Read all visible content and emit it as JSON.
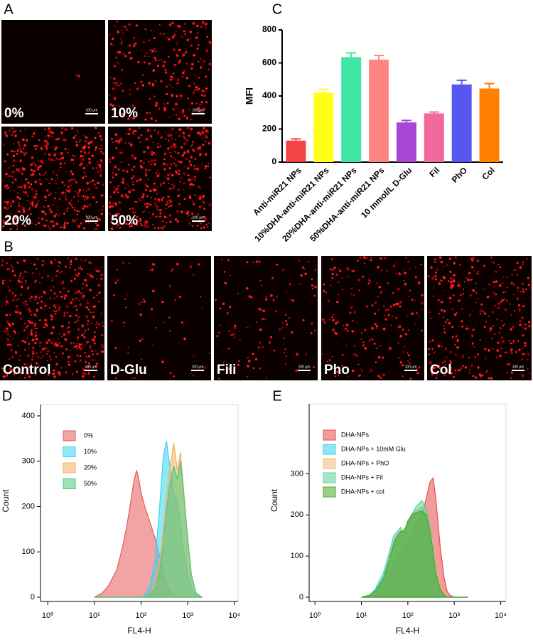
{
  "panel_labels": [
    "A",
    "B",
    "C",
    "D",
    "E"
  ],
  "images_a": [
    {
      "label": "0%",
      "scale": "100 μm"
    },
    {
      "label": "10%",
      "scale": "100 μm"
    },
    {
      "label": "20%",
      "scale": "100 μm"
    },
    {
      "label": "50%",
      "scale": "100 μm"
    }
  ],
  "images_b": [
    {
      "label": "Control",
      "scale": "100 μm"
    },
    {
      "label": "D-Glu",
      "scale": "100 μm"
    },
    {
      "label": "Fili",
      "scale": "100 μm"
    },
    {
      "label": "Pho",
      "scale": "100 μm"
    },
    {
      "label": "Col",
      "scale": "100 μm"
    }
  ],
  "chart_data": [
    {
      "type": "bar",
      "ylabel": "MFI",
      "categories": [
        "Anti-miR21 NPs",
        "10%DHA-anti-miR21 NPs",
        "20%DHA-anti-miR21 NPs",
        "50%DHA-anti-miR21 NPs",
        "10 mmol/L D-Glu",
        "Fil",
        "PhO",
        "Col"
      ],
      "values": [
        130,
        420,
        635,
        620,
        240,
        295,
        470,
        445
      ],
      "errors": [
        10,
        20,
        25,
        25,
        12,
        8,
        25,
        30
      ],
      "colors": [
        "#f24444",
        "#ffff1a",
        "#3ee8a4",
        "#ff8484",
        "#a846d6",
        "#f2689a",
        "#5656f0",
        "#ff8000"
      ],
      "ylim": [
        0,
        800
      ],
      "yticks": [
        0,
        200,
        400,
        600,
        800
      ],
      "grid": false
    },
    {
      "type": "area",
      "xlabel": "FL4-H",
      "ylabel": "Count",
      "xscale": "log",
      "legend": "upper left",
      "x": [
        10,
        15,
        20,
        30,
        40,
        50,
        60,
        70,
        80,
        90,
        100,
        120,
        150,
        200,
        250,
        300,
        350,
        400,
        500,
        600,
        700,
        800,
        1000,
        1200,
        1500,
        2000
      ],
      "series": [
        {
          "name": "0%",
          "color": "#e8585a",
          "values": [
            0,
            10,
            25,
            60,
            110,
            160,
            210,
            255,
            280,
            260,
            230,
            200,
            170,
            130,
            90,
            55,
            35,
            20,
            5,
            0,
            0,
            0,
            0,
            0,
            0,
            0
          ]
        },
        {
          "name": "10%",
          "color": "#38d4f0",
          "values": [
            0,
            0,
            0,
            0,
            0,
            0,
            0,
            0,
            0,
            0,
            0,
            5,
            20,
            80,
            200,
            310,
            345,
            300,
            230,
            210,
            160,
            110,
            50,
            20,
            5,
            0
          ]
        },
        {
          "name": "20%",
          "color": "#f5b060",
          "values": [
            0,
            0,
            0,
            0,
            0,
            0,
            0,
            0,
            0,
            0,
            0,
            0,
            5,
            30,
            80,
            150,
            220,
            270,
            340,
            280,
            320,
            250,
            130,
            50,
            10,
            0
          ]
        },
        {
          "name": "50%",
          "color": "#4cc97a",
          "values": [
            0,
            0,
            0,
            0,
            0,
            0,
            0,
            0,
            0,
            0,
            0,
            0,
            5,
            20,
            60,
            120,
            190,
            240,
            290,
            260,
            300,
            240,
            130,
            50,
            10,
            0
          ]
        }
      ],
      "xlim": [
        0.7,
        12000
      ],
      "xticks": [
        {
          "value": 1,
          "label": "10⁰"
        },
        {
          "value": 10,
          "label": "10¹"
        },
        {
          "value": 100,
          "label": "10²"
        },
        {
          "value": 1000,
          "label": "10³"
        },
        {
          "value": 10000,
          "label": "10⁴"
        }
      ],
      "ylim": [
        0,
        425
      ],
      "yticks": [
        0,
        100,
        200,
        300,
        400
      ],
      "grid": false
    },
    {
      "type": "area",
      "xlabel": "FL4-H",
      "ylabel": "Count",
      "xscale": "log",
      "legend": "upper left",
      "x": [
        10,
        15,
        20,
        30,
        40,
        50,
        60,
        70,
        80,
        90,
        100,
        120,
        150,
        200,
        250,
        300,
        350,
        400,
        500,
        600,
        700,
        800,
        1000,
        1200,
        1500,
        2000
      ],
      "series": [
        {
          "name": "DHA-NPs",
          "color": "#e84848",
          "values": [
            0,
            0,
            5,
            20,
            50,
            80,
            100,
            110,
            120,
            130,
            140,
            150,
            170,
            200,
            240,
            280,
            290,
            240,
            120,
            50,
            15,
            5,
            0,
            0,
            0,
            0
          ]
        },
        {
          "name": "DHA-NPs + 10mM Glu",
          "color": "#38d0f0",
          "values": [
            0,
            5,
            20,
            60,
            110,
            150,
            160,
            170,
            160,
            170,
            180,
            200,
            210,
            220,
            210,
            160,
            110,
            60,
            20,
            5,
            0,
            0,
            0,
            0,
            0,
            0
          ]
        },
        {
          "name": "DHA-NPs + PhO",
          "color": "#f5b878",
          "values": [
            0,
            5,
            15,
            50,
            100,
            140,
            155,
            165,
            160,
            165,
            175,
            195,
            210,
            220,
            210,
            170,
            120,
            70,
            25,
            5,
            0,
            0,
            0,
            0,
            0,
            0
          ]
        },
        {
          "name": "DHA-NPs + Fil",
          "color": "#5cd29a",
          "values": [
            0,
            5,
            15,
            50,
            95,
            135,
            150,
            160,
            155,
            165,
            180,
            200,
            220,
            235,
            215,
            170,
            115,
            60,
            20,
            5,
            0,
            0,
            0,
            0,
            0,
            0
          ]
        },
        {
          "name": "DHA-NPs + col",
          "color": "#4aa828",
          "values": [
            0,
            5,
            15,
            45,
            90,
            130,
            150,
            160,
            160,
            170,
            185,
            200,
            205,
            210,
            200,
            160,
            110,
            60,
            20,
            5,
            0,
            0,
            0,
            0,
            0,
            0
          ]
        }
      ],
      "xlim": [
        0.75,
        13000
      ],
      "xticks": [
        {
          "value": 1,
          "label": "10⁰"
        },
        {
          "value": 10,
          "label": "10¹"
        },
        {
          "value": 100,
          "label": "10²"
        },
        {
          "value": 1000,
          "label": "10³"
        },
        {
          "value": 10000,
          "label": "10⁴"
        }
      ],
      "ylim": [
        0,
        470
      ],
      "yticks": [
        0,
        100,
        200,
        300
      ],
      "grid": false
    }
  ]
}
